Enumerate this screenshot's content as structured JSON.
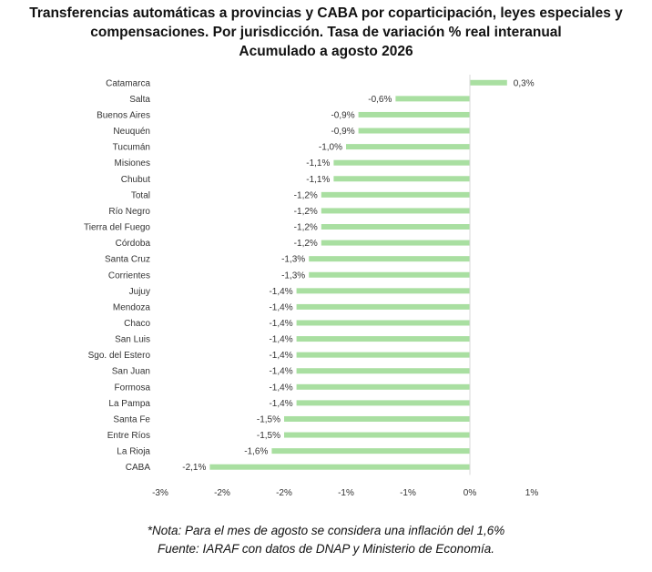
{
  "title": {
    "line1": "Transferencias automáticas a provincias y CABA por coparticipación, leyes especiales y",
    "line2": "compensaciones. Por jurisdicción. Tasa de variación % real interanual",
    "line3": "Acumulado a agosto 2026"
  },
  "notes": {
    "note": "*Nota: Para el mes de agosto se considera una inflación del 1,6%",
    "source": "Fuente: IARAF con datos de DNAP y Ministerio de Economía."
  },
  "colors": {
    "bar": "#a9dfa1"
  },
  "chart_data": {
    "type": "bar",
    "orientation": "horizontal",
    "title": "Transferencias automáticas a provincias y CABA por coparticipación, leyes especiales y compensaciones. Por jurisdicción. Tasa de variación % real interanual. Acumulado a agosto 2026",
    "categories": [
      "Catamarca",
      "Salta",
      "Buenos Aires",
      "Neuquén",
      "Tucumán",
      "Misiones",
      "Chubut",
      "Total",
      "Río Negro",
      "Tierra del Fuego",
      "Córdoba",
      "Santa Cruz",
      "Corrientes",
      "Jujuy",
      "Mendoza",
      "Chaco",
      "San Luis",
      "Sgo. del Estero",
      "San Juan",
      "Formosa",
      "La Pampa",
      "Santa Fe",
      "Entre Ríos",
      "La Rioja",
      "CABA"
    ],
    "values": [
      0.3,
      -0.6,
      -0.9,
      -0.9,
      -1.0,
      -1.1,
      -1.1,
      -1.2,
      -1.2,
      -1.2,
      -1.2,
      -1.3,
      -1.3,
      -1.4,
      -1.4,
      -1.4,
      -1.4,
      -1.4,
      -1.4,
      -1.4,
      -1.4,
      -1.5,
      -1.5,
      -1.6,
      -2.1
    ],
    "data_labels": [
      "0,3%",
      "-0,6%",
      "-0,9%",
      "-0,9%",
      "-1,0%",
      "-1,1%",
      "-1,1%",
      "-1,2%",
      "-1,2%",
      "-1,2%",
      "-1,2%",
      "-1,3%",
      "-1,3%",
      "-1,4%",
      "-1,4%",
      "-1,4%",
      "-1,4%",
      "-1,4%",
      "-1,4%",
      "-1,4%",
      "-1,4%",
      "-1,5%",
      "-1,5%",
      "-1,6%",
      "-2,1%"
    ],
    "xlim": [
      -3,
      1
    ],
    "x_ticks": [
      -3,
      -2,
      -1,
      0,
      1
    ],
    "x_tick_labels": [
      "-3%",
      "-2%",
      "-2%",
      "-1%",
      "-1%",
      "0%",
      "1%"
    ],
    "x_tick_values": [
      -3,
      -2.5,
      -2,
      -1.5,
      -1,
      -0.5,
      0,
      0.5,
      1
    ],
    "x_tick_labels_shown": [
      "-3%",
      "-2%",
      "-2%",
      "-1%",
      "-1%",
      "0%",
      "1%"
    ],
    "grid": false,
    "legend": "none"
  }
}
